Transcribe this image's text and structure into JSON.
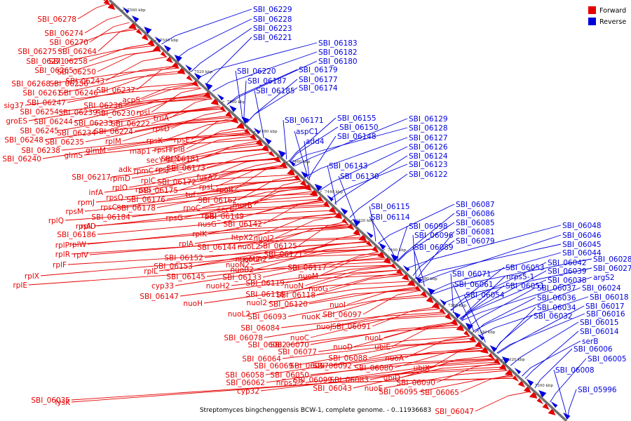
{
  "caption": "Streptomyces bingchenggensis BCW-1, complete genome. - 0..11936683",
  "legend": [
    {
      "label": "Forward",
      "color": "#e60000"
    },
    {
      "label": "Reverse",
      "color": "#0000dd"
    }
  ],
  "colors": {
    "forward": "#e60000",
    "reverse": "#0000dd",
    "axis": "#707070"
  },
  "ticks": [
    "7560 kbp",
    "7540 kbp",
    "7520 kbp",
    "7500 kbp",
    "7480 kbp",
    "7460 kbp",
    "7440 kbp",
    "7420 kbp",
    "7400 kbp",
    "7380 kbp",
    "7360 kbp",
    "7340 kbp",
    "7320 kbp",
    "7300 kbp"
  ],
  "forward_labels": [
    "SBI_06278",
    "SBI_06274",
    "SBI_06270",
    "SBI_06275",
    "SBI_06264",
    "SBI_06271",
    "SBI_06258",
    "SBI_06265",
    "SBI_06250",
    "SBI_06243",
    "SBI_06268",
    "SBI_06256",
    "SBI_06261",
    "SBI_06246",
    "SBI_06237",
    "acpS",
    "sig37",
    "SBI_06247",
    "SBI_06236",
    "rpsI",
    "SBI_06254",
    "SBI_06239",
    "SBI_06230",
    "groES",
    "SBI_06244",
    "SBI_06233",
    "SBI_06222",
    "truA",
    "SBI_06245",
    "SBI_06234",
    "SBI_06224",
    "rpsD",
    "SBI_06248",
    "SBI_06235",
    "rplM",
    "SBI_06238",
    "glmM",
    "rpsK",
    "rpsE",
    "SBI_06240",
    "glmS",
    "map1",
    "rpsH",
    "rplB",
    "secY",
    "rplN",
    "SBI_06181",
    "adk",
    "rpmC",
    "rpsJ",
    "SBI_06173",
    "SBI_06217",
    "rpmD",
    "rplC",
    "SBI_06172",
    "fusA2",
    "infA",
    "rplO",
    "rpsS",
    "SBI_06175",
    "rpmJ",
    "rpsQ",
    "SBI_06176",
    "rpsL",
    "rpoB",
    "tuf",
    "rpsM",
    "rpsC",
    "SBI_06178",
    "SBI_06162",
    "rplQ",
    "SBI_06184",
    "rpoC",
    "secE",
    "murB",
    "rpsN",
    "SBI_06186",
    "rplD",
    "rpsG",
    "rplU",
    "SBI_06149",
    "rplP",
    "rplW",
    "nusG",
    "SBI_06142",
    "rplR",
    "rplV",
    "rplK",
    "nuoJ2",
    "htpX2",
    "rplF",
    "rplA",
    "SBI_06144",
    "nuoL2",
    "SBI_06125",
    "SBI_06152",
    "nuoM2",
    "SBI_06121",
    "rplX",
    "SBI_06153",
    "nuoN2",
    "nuoA2",
    "rplE",
    "rplL",
    "nuoB2",
    "SBI_06117",
    "SBI_06145",
    "SBI_06133",
    "nuoM",
    "cyp33",
    "nuoH2",
    "SBI_06119",
    "nuoN",
    "SBI_06147",
    "SBI_06116",
    "nuoG",
    "nuoI2",
    "SBI_06118",
    "nuoH",
    "nuoL2",
    "SBI_06120",
    "nuoI",
    "SBI_06093",
    "nuoK",
    "SBI_06097",
    "SBI_06084",
    "nuoJ",
    "SBI_06091",
    "SBI_06078",
    "nuoC",
    "nuoL",
    "SBI_06082",
    "SBI_06070",
    "nuoD",
    "ubiE",
    "SBI_06077",
    "SBI_06064",
    "SBI_06088",
    "nuoA",
    "SBI_06069",
    "SBI_06057",
    "SBI_06092",
    "SBI_06080",
    "ubiX",
    "SBI_06058",
    "SBI_06050",
    "SBI_06099",
    "SBI_06083",
    "ubiD",
    "SBI_06062",
    "nrps5-2",
    "nuoE",
    "SBI_06090",
    "cyp32",
    "SBI_06043",
    "SBI_06095",
    "SBI_06065",
    "SBI_06047",
    "SBI_06035",
    "lysK"
  ],
  "reverse_labels": [
    "SBI_06229",
    "SBI_06228",
    "SBI_06223",
    "SBI_06221",
    "SBI_06183",
    "SBI_06182",
    "SBI_06180",
    "SBI_06220",
    "SBI_06179",
    "SBI_06187",
    "SBI_06177",
    "SBI_06185",
    "SBI_06174",
    "SBI_06171",
    "SBI_06155",
    "aspC1",
    "SBI_06150",
    "add4",
    "SBI_06148",
    "SBI_06129",
    "SBI_06128",
    "SBI_06127",
    "SBI_06126",
    "SBI_06124",
    "SBI_06123",
    "SBI_06143",
    "SBI_06122",
    "SBI_06130",
    "SBI_06115",
    "SBI_06087",
    "SBI_06114",
    "SBI_06086",
    "SBI_06098",
    "SBI_06085",
    "SBI_06096",
    "SBI_06081",
    "SBI_06079",
    "SBI_06089",
    "SBI_06048",
    "SBI_06046",
    "SBI_06045",
    "SBI_06044",
    "SBI_06053",
    "SBI_06042",
    "SBI_06028",
    "SBI_06071",
    "nrps5-1",
    "SBI_06039",
    "SBI_06027",
    "SBI_06038",
    "argS2",
    "SBI_06061",
    "SBI_06051",
    "SBI_06037",
    "SBI_06024",
    "SBI_06054",
    "SBI_06036",
    "SBI_06018",
    "SBI_06034",
    "SBI_06017",
    "SBI_06032",
    "SBI_06016",
    "SBI_06015",
    "SBI_06014",
    "serB",
    "SBI_06006",
    "SBI_06005",
    "SBI_06008",
    "SBI_05996"
  ]
}
